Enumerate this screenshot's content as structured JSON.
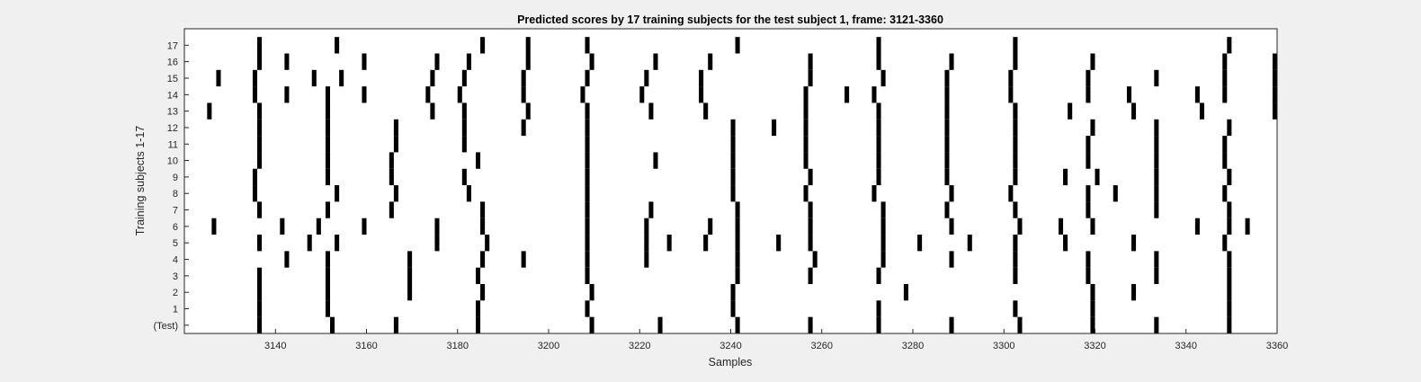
{
  "chart_data": {
    "type": "heatmap",
    "title": "Predicted scores by 17 training subjects for the test subject 1, frame: 3121-3360",
    "xlabel": "Samples",
    "ylabel": "Training subjects 1-17",
    "xlim": [
      3121,
      3360
    ],
    "x_ticks": [
      3140,
      3160,
      3180,
      3200,
      3220,
      3240,
      3260,
      3280,
      3300,
      3320,
      3340,
      3360
    ],
    "row_labels": [
      "(Test)",
      "1",
      "2",
      "3",
      "4",
      "5",
      "6",
      "7",
      "8",
      "9",
      "10",
      "11",
      "12",
      "13",
      "14",
      "15",
      "16",
      "17"
    ],
    "colors": {
      "background": "#ffffff",
      "mark": "#000000",
      "figure": "#f0f0f0"
    },
    "grid": false,
    "rows": [
      {
        "label": "(Test)",
        "x": [
          3137,
          3153,
          3167,
          3185,
          3210,
          3225,
          3242,
          3258,
          3273,
          3289,
          3304,
          3320,
          3334,
          3350
        ]
      },
      {
        "label": "1",
        "x": [
          3137,
          3152,
          3185,
          3209,
          3241,
          3273,
          3303,
          3320,
          3350
        ]
      },
      {
        "label": "2",
        "x": [
          3137,
          3152,
          3170,
          3186,
          3210,
          3241,
          3279,
          3320,
          3329,
          3350
        ]
      },
      {
        "label": "3",
        "x": [
          3137,
          3152,
          3170,
          3185,
          3209,
          3242,
          3258,
          3273,
          3303,
          3319,
          3334,
          3350
        ]
      },
      {
        "label": "4",
        "x": [
          3143,
          3152,
          3170,
          3186,
          3195,
          3209,
          3222,
          3242,
          3259,
          3274,
          3289,
          3303,
          3319,
          3334,
          3350
        ]
      },
      {
        "label": "5",
        "x": [
          3137,
          3148,
          3154,
          3176,
          3187,
          3209,
          3222,
          3227,
          3235,
          3242,
          3251,
          3258,
          3274,
          3282,
          3293,
          3303,
          3314,
          3329,
          3349
        ]
      },
      {
        "label": "6",
        "x": [
          3127,
          3142,
          3150,
          3160,
          3176,
          3186,
          3209,
          3222,
          3236,
          3242,
          3258,
          3274,
          3289,
          3304,
          3313,
          3320,
          3343,
          3350,
          3354
        ]
      },
      {
        "label": "7",
        "x": [
          3137,
          3152,
          3166,
          3186,
          3209,
          3223,
          3242,
          3258,
          3274,
          3288,
          3303,
          3319,
          3334,
          3350
        ]
      },
      {
        "label": "8",
        "x": [
          3136,
          3154,
          3167,
          3183,
          3209,
          3241,
          3257,
          3272,
          3289,
          3302,
          3319,
          3325,
          3334,
          3349
        ]
      },
      {
        "label": "9",
        "x": [
          3136,
          3152,
          3166,
          3182,
          3209,
          3241,
          3258,
          3273,
          3288,
          3303,
          3314,
          3321,
          3334,
          3350
        ]
      },
      {
        "label": "10",
        "x": [
          3137,
          3152,
          3166,
          3185,
          3209,
          3224,
          3241,
          3257,
          3273,
          3288,
          3303,
          3319,
          3334,
          3349
        ]
      },
      {
        "label": "11",
        "x": [
          3137,
          3152,
          3167,
          3182,
          3209,
          3241,
          3257,
          3273,
          3288,
          3303,
          3319,
          3334,
          3349
        ]
      },
      {
        "label": "12",
        "x": [
          3137,
          3152,
          3167,
          3182,
          3195,
          3209,
          3241,
          3250,
          3257,
          3273,
          3288,
          3303,
          3320,
          3334,
          3350
        ]
      },
      {
        "label": "13",
        "x": [
          3126,
          3137,
          3152,
          3175,
          3182,
          3196,
          3209,
          3223,
          3235,
          3257,
          3273,
          3288,
          3303,
          3315,
          3329,
          3344,
          3360
        ]
      },
      {
        "label": "14",
        "x": [
          3136,
          3143,
          3152,
          3160,
          3174,
          3181,
          3195,
          3208,
          3221,
          3234,
          3257,
          3266,
          3272,
          3288,
          3302,
          3319,
          3328,
          3343,
          3349,
          3360
        ]
      },
      {
        "label": "15",
        "x": [
          3128,
          3136,
          3149,
          3155,
          3175,
          3182,
          3195,
          3209,
          3222,
          3234,
          3258,
          3274,
          3288,
          3302,
          3319,
          3334,
          3349,
          3360
        ]
      },
      {
        "label": "16",
        "x": [
          3137,
          3143,
          3160,
          3176,
          3183,
          3196,
          3210,
          3224,
          3236,
          3258,
          3273,
          3289,
          3303,
          3320,
          3349,
          3360
        ]
      },
      {
        "label": "17",
        "x": [
          3137,
          3154,
          3186,
          3196,
          3209,
          3242,
          3273,
          3303,
          3350
        ]
      }
    ]
  }
}
